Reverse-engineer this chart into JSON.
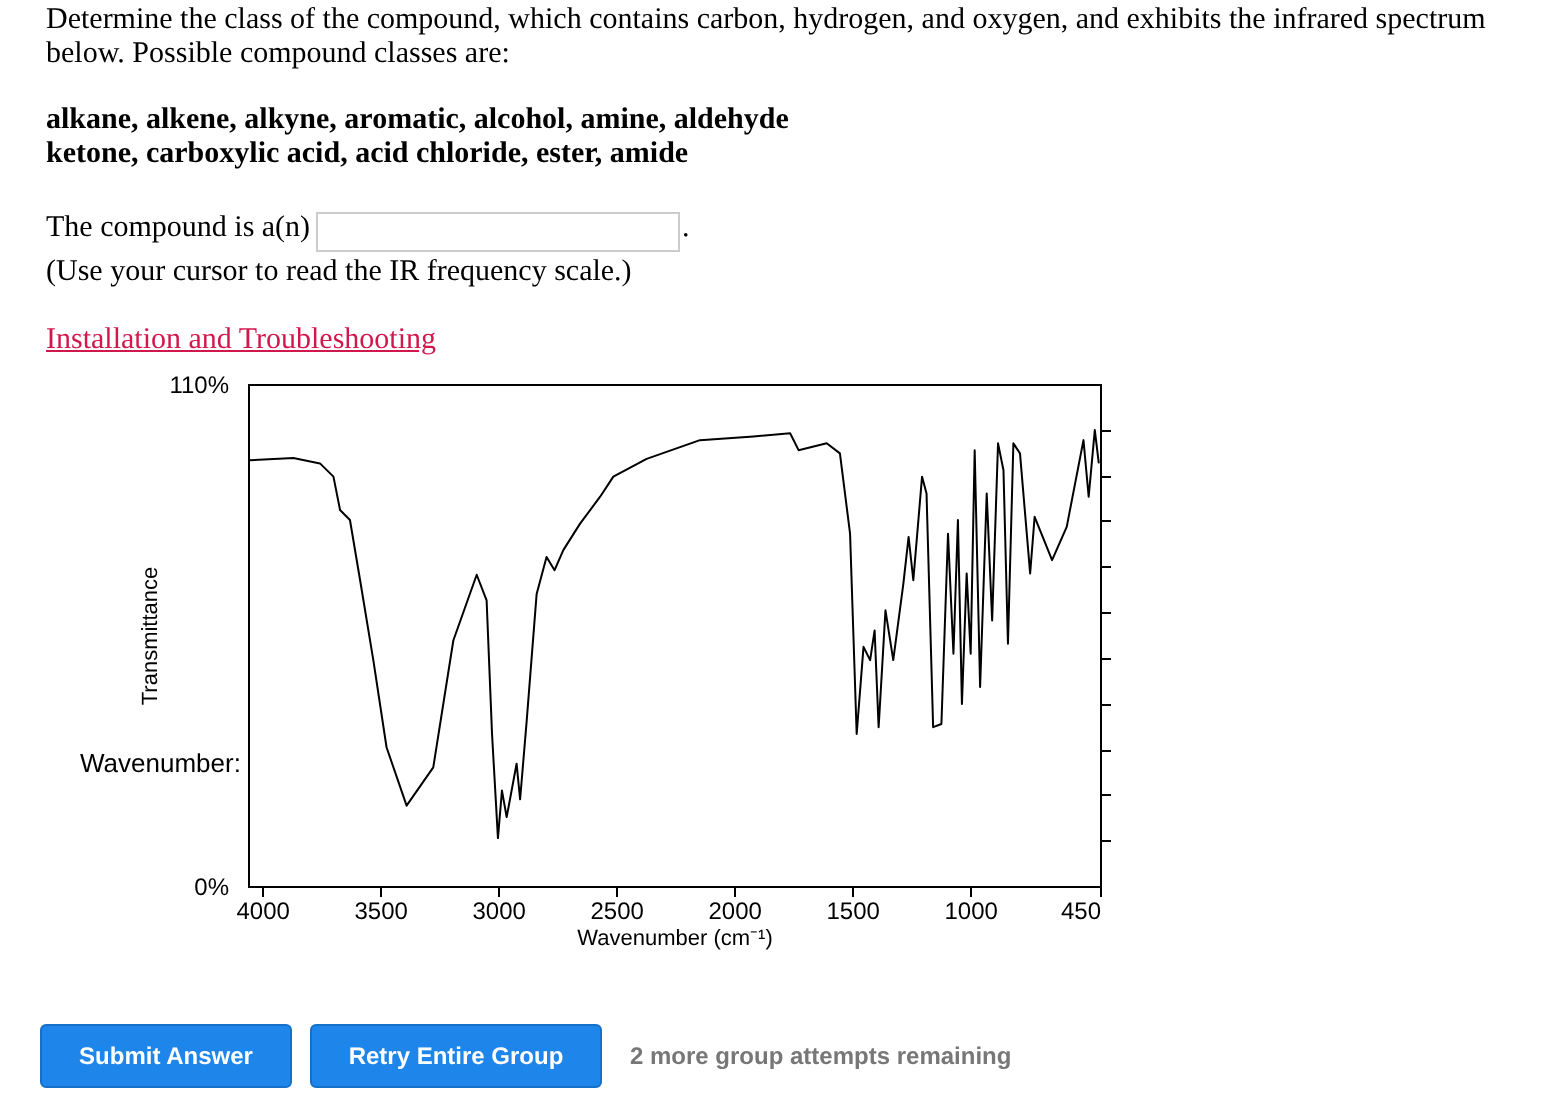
{
  "chart_data": {
    "type": "line",
    "xlabel": "Wavenumber (cm⁻¹)",
    "ylabel": "Transmittance",
    "xlim": [
      4060,
      450
    ],
    "xticks": [
      4000,
      3500,
      3000,
      2500,
      2000,
      1500,
      1000,
      450
    ],
    "ylim": [
      0,
      110
    ],
    "yticks": [
      {
        "value": 0,
        "label": "0%"
      },
      {
        "value": 10,
        "label": null
      },
      {
        "value": 20,
        "label": null
      },
      {
        "value": 30,
        "label": null
      },
      {
        "value": 40,
        "label": null
      },
      {
        "value": 50,
        "label": null
      },
      {
        "value": 60,
        "label": null
      },
      {
        "value": 70,
        "label": null
      },
      {
        "value": 80,
        "label": null
      },
      {
        "value": 90,
        "label": null
      },
      {
        "value": 100,
        "label": null
      },
      {
        "value": 110,
        "label": "110%"
      }
    ],
    "x": [
      4052,
      3868,
      3755,
      3698,
      3670,
      3628,
      3585,
      3529,
      3473,
      3388,
      3275,
      3190,
      3091,
      3049,
      3026,
      3001,
      2984,
      2964,
      2922,
      2907,
      2879,
      2837,
      2795,
      2761,
      2724,
      2653,
      2568,
      2512,
      2371,
      2145,
      1918,
      1763,
      1727,
      1608,
      1552,
      1509,
      1481,
      1452,
      1424,
      1405,
      1388,
      1359,
      1326,
      1283,
      1261,
      1241,
      1204,
      1185,
      1157,
      1122,
      1094,
      1071,
      1052,
      1035,
      1015,
      998,
      981,
      958,
      930,
      907,
      882,
      859,
      840,
      817,
      789,
      746,
      727,
      653,
      591,
      520,
      498,
      472,
      455
    ],
    "series": [
      {
        "color": "#000000",
        "values": [
          93.3,
          93.8,
          92.6,
          89.7,
          82.4,
          80.2,
          67,
          49.5,
          30.4,
          17.6,
          26,
          53.8,
          68.2,
          62.6,
          33.3,
          10.5,
          20.9,
          15.1,
          26.8,
          19,
          36.3,
          64,
          72.1,
          69.2,
          73.6,
          79.4,
          85.3,
          89.7,
          93.6,
          97.7,
          98.5,
          99.2,
          95.5,
          97,
          94.8,
          77.2,
          33.3,
          52.4,
          49.5,
          56,
          34.8,
          60.4,
          49.5,
          66.3,
          76.5,
          67,
          89.7,
          86,
          34.8,
          35.5,
          77.2,
          50.9,
          80.2,
          39.9,
          68.5,
          50.9,
          95.5,
          43.6,
          86,
          58.2,
          97,
          91.1,
          53.1,
          97,
          94.8,
          68.5,
          80.9,
          71.4,
          78.7,
          97.7,
          85.3,
          99.9,
          92.6
        ]
      }
    ],
    "annotations": [
      "Determine the class of the compound, which contains carbon, hydrogen, and oxygen, and exhibits the infrared spectrum below. Possible compound classes are:",
      "alkane, alkene, alkyne, aromatic, alcohol, amine, aldehyde",
      "ketone, carboxylic acid, acid chloride, ester, amide",
      "The compound is a(n)",
      ".",
      "(Use your cursor to read the IR frequency scale.)",
      "Installation and Troubleshooting",
      "Wavenumber:",
      "Submit Answer",
      "Retry Entire Group",
      "2 more group attempts remaining"
    ]
  }
}
